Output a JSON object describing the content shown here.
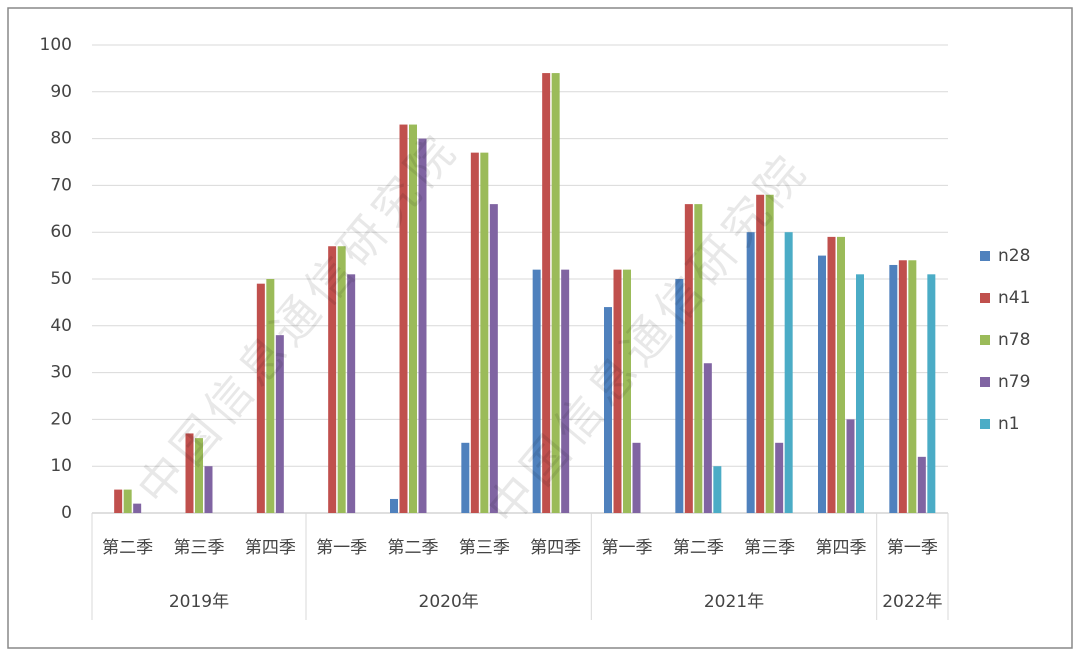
{
  "chart_data": {
    "type": "bar",
    "watermark": "中国信息通信研究院",
    "categories": [
      "第二季",
      "第三季",
      "第四季",
      "第一季",
      "第二季",
      "第三季",
      "第四季",
      "第一季",
      "第二季",
      "第三季",
      "第四季",
      "第一季"
    ],
    "category_years": [
      "2019年",
      "2019年",
      "2019年",
      "2020年",
      "2020年",
      "2020年",
      "2020年",
      "2021年",
      "2021年",
      "2021年",
      "2021年",
      "2022年"
    ],
    "series": [
      {
        "name": "n28",
        "color": "#4f81bd",
        "values": [
          null,
          null,
          null,
          null,
          3,
          15,
          52,
          44,
          50,
          60,
          55,
          53
        ]
      },
      {
        "name": "n41",
        "color": "#c0504d",
        "values": [
          5,
          17,
          49,
          57,
          83,
          77,
          94,
          52,
          66,
          68,
          59,
          54
        ]
      },
      {
        "name": "n78",
        "color": "#9bbb59",
        "values": [
          5,
          16,
          50,
          57,
          83,
          77,
          94,
          52,
          66,
          68,
          59,
          54
        ]
      },
      {
        "name": "n79",
        "color": "#8064a2",
        "values": [
          2,
          10,
          38,
          51,
          80,
          66,
          52,
          15,
          32,
          15,
          20,
          12
        ]
      },
      {
        "name": "n1",
        "color": "#4bacc6",
        "values": [
          null,
          null,
          null,
          null,
          null,
          null,
          null,
          null,
          10,
          60,
          51,
          51
        ]
      }
    ],
    "ylim": [
      0,
      100
    ],
    "yticks": [
      0,
      10,
      20,
      30,
      40,
      50,
      60,
      70,
      80,
      90,
      100
    ],
    "grid": true,
    "legend": "right"
  }
}
